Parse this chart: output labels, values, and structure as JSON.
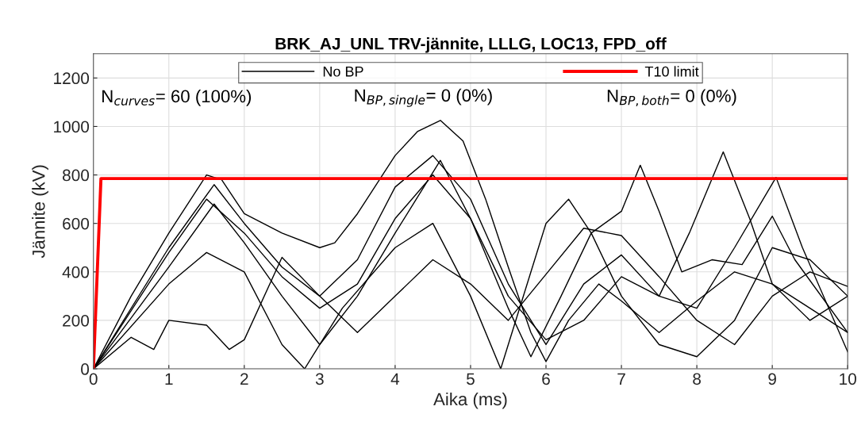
{
  "chart_data": {
    "type": "line",
    "title": "BRK_AJ_UNL TRV-jännite, LLLG, LOC13, FPD_off",
    "xlabel": "Aika (ms)",
    "ylabel": "Jännite (kV)",
    "xlim": [
      0,
      10
    ],
    "xticks": [
      0,
      1,
      2,
      3,
      4,
      5,
      6,
      7,
      8,
      9,
      10
    ],
    "ylim": [
      0,
      1300
    ],
    "yticks": [
      0,
      200,
      400,
      600,
      800,
      1000,
      1200
    ],
    "grid": true,
    "legend": "top",
    "line_style": "solid",
    "marker": "none",
    "annotations": [
      "N$_{curves}$= 60 (100%)",
      "N$_{BP,single}$= 0 (0%)",
      "N$_{BP,both}$= 0 (0%)"
    ],
    "series": [
      {
        "name": "No BP",
        "color": "#000000",
        "x": [
          0,
          0.5,
          1,
          1.5,
          1.7,
          2,
          2.5,
          3,
          3.2,
          3.5,
          4,
          4.3,
          4.6,
          4.9,
          5.2,
          5.5,
          5.8,
          6,
          6.3,
          6.7,
          7,
          7.5,
          8,
          8.5,
          9,
          9.5,
          10
        ],
        "values": [
          0,
          300,
          560,
          800,
          780,
          640,
          560,
          500,
          520,
          640,
          880,
          980,
          1025,
          940,
          700,
          420,
          150,
          30,
          200,
          350,
          280,
          150,
          280,
          400,
          350,
          250,
          150
        ]
      },
      {
        "color": "#000000",
        "x": [
          0,
          1,
          1.5,
          2,
          2.5,
          3,
          3.5,
          4,
          4.5,
          5,
          5.5,
          6,
          6.5,
          7,
          7.5,
          7.9,
          8.35,
          8.7,
          9,
          9.5,
          10
        ],
        "values": [
          0,
          480,
          700,
          560,
          380,
          250,
          350,
          620,
          800,
          620,
          300,
          120,
          200,
          380,
          300,
          560,
          895,
          620,
          350,
          200,
          300
        ]
      },
      {
        "color": "#000000",
        "x": [
          0,
          1,
          1.6,
          2,
          2.5,
          3,
          3.5,
          4,
          4.6,
          5,
          5.5,
          5.8,
          6.2,
          6.6,
          7,
          7.25,
          7.5,
          7.8,
          8.2,
          8.6,
          9,
          9.3,
          10
        ],
        "values": [
          0,
          420,
          680,
          520,
          300,
          100,
          300,
          560,
          860,
          620,
          250,
          50,
          300,
          560,
          650,
          840,
          650,
          400,
          450,
          430,
          630,
          450,
          150
        ]
      },
      {
        "color": "#000000",
        "x": [
          0,
          1,
          1.6,
          2,
          2.5,
          3,
          3.5,
          4,
          4.5,
          5,
          5.5,
          6,
          6.5,
          7,
          7.5,
          8,
          8.5,
          9.05,
          9.4,
          10
        ],
        "values": [
          0,
          500,
          760,
          600,
          420,
          300,
          450,
          750,
          880,
          700,
          350,
          100,
          350,
          470,
          300,
          250,
          500,
          790,
          500,
          70
        ]
      },
      {
        "color": "#000000",
        "x": [
          0,
          0.5,
          0.8,
          1,
          1.5,
          1.8,
          2,
          2.5,
          3,
          3.5,
          4,
          4.5,
          5,
          5.5,
          6,
          6.5,
          7,
          7.5,
          8,
          8.5,
          9,
          9.5,
          10
        ],
        "values": [
          0,
          130,
          80,
          200,
          180,
          80,
          120,
          460,
          300,
          150,
          300,
          450,
          350,
          200,
          390,
          580,
          550,
          380,
          200,
          100,
          300,
          400,
          340
        ]
      },
      {
        "color": "#000000",
        "x": [
          0,
          1,
          1.5,
          2,
          2.5,
          2.8,
          3.3,
          4,
          4.5,
          5,
          5.4,
          6,
          6.3,
          6.6,
          7,
          7.5,
          8,
          8.5,
          9,
          9.5,
          10
        ],
        "values": [
          0,
          350,
          480,
          400,
          100,
          0,
          250,
          500,
          600,
          300,
          0,
          600,
          700,
          560,
          300,
          100,
          50,
          200,
          500,
          450,
          300
        ]
      },
      {
        "name": "T10 limit",
        "color": "#ff0000",
        "x": [
          0,
          0.1,
          10
        ],
        "values": [
          0,
          785,
          785
        ]
      }
    ]
  }
}
